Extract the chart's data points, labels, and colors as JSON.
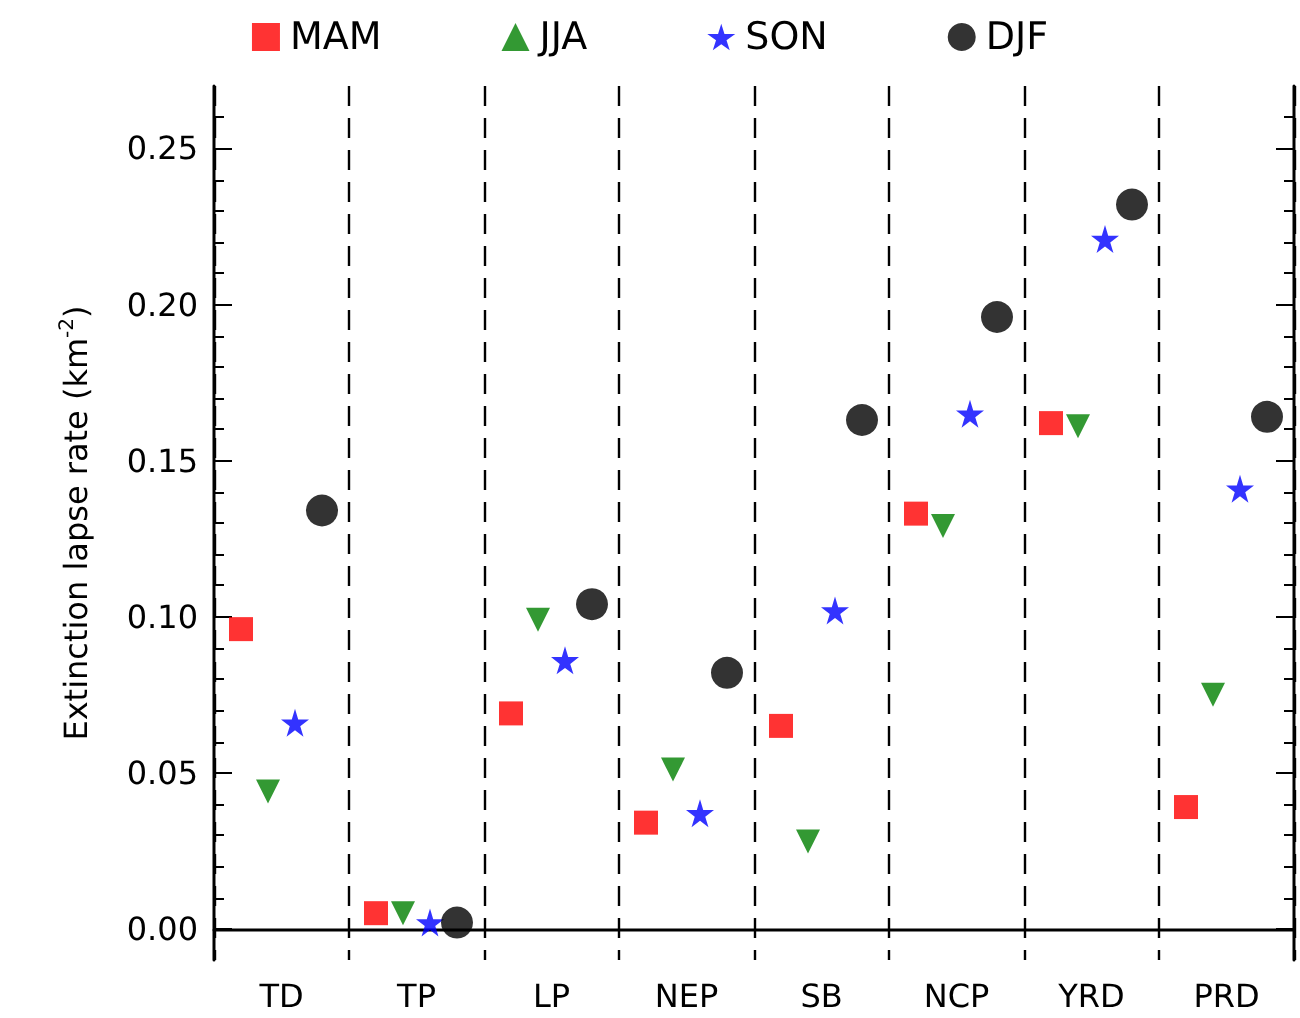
{
  "chart_data": {
    "type": "scatter",
    "ylabel": "Extinction lapse rate (km$^{-2}$)",
    "categories": [
      "TD",
      "TP",
      "LP",
      "NEP",
      "SB",
      "NCP",
      "YRD",
      "PRD"
    ],
    "series": [
      {
        "name": "MAM",
        "color": "#ff0000",
        "marker": "square",
        "values": [
          0.096,
          0.005,
          0.069,
          0.034,
          0.065,
          0.133,
          0.162,
          0.039
        ]
      },
      {
        "name": "JJA",
        "color": "#008000",
        "marker": "triangle",
        "values": [
          0.044,
          0.005,
          0.099,
          0.051,
          0.028,
          0.129,
          0.161,
          0.075
        ]
      },
      {
        "name": "SON",
        "color": "#0000ff",
        "marker": "star",
        "values": [
          0.066,
          0.002,
          0.086,
          0.037,
          0.102,
          0.165,
          0.221,
          0.141
        ]
      },
      {
        "name": "DJF",
        "color": "#000000",
        "marker": "circle",
        "values": [
          0.134,
          0.002,
          0.104,
          0.082,
          0.163,
          0.196,
          0.232,
          0.164
        ]
      }
    ],
    "ylim": [
      -0.01,
      0.27
    ],
    "yticks": [
      {
        "value": 0,
        "label": "0.00"
      },
      {
        "value": 0.05,
        "label": "0.05"
      },
      {
        "value": 0.1,
        "label": "0.10"
      },
      {
        "value": 0.15,
        "label": "0.15"
      },
      {
        "value": 0.2,
        "label": "0.20"
      },
      {
        "value": 0.25,
        "label": "0.25"
      }
    ],
    "grid": "x",
    "legend": "top"
  }
}
